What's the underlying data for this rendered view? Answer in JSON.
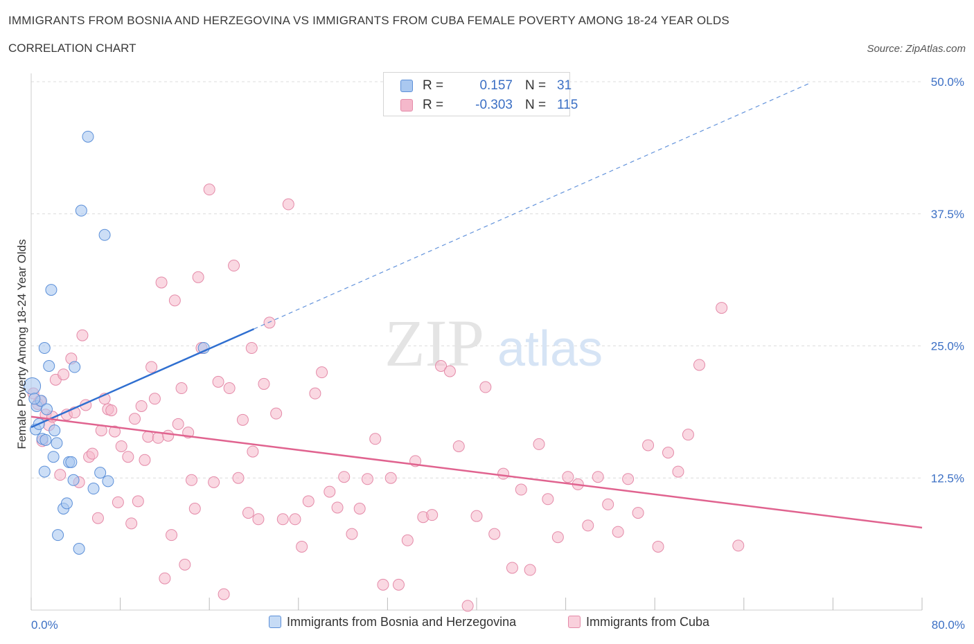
{
  "header": {
    "title": "IMMIGRANTS FROM BOSNIA AND HERZEGOVINA VS IMMIGRANTS FROM CUBA FEMALE POVERTY AMONG 18-24 YEAR OLDS",
    "subtitle": "CORRELATION CHART",
    "source": "Source: ZipAtlas.com"
  },
  "legend": {
    "r_label": "R =",
    "n_label": "N =",
    "rows": [
      {
        "r": "0.157",
        "n": "31"
      },
      {
        "r": "-0.303",
        "n": "115"
      }
    ]
  },
  "colors": {
    "blue_fill": "#aac8f0",
    "blue_stroke": "#5b8fd8",
    "blue_line": "#2f6fd0",
    "pink_fill": "#f5b8cb",
    "pink_stroke": "#e48aa8",
    "pink_line": "#e0638f",
    "axis_text": "#3b6fc4",
    "grid": "#dcdcdc"
  },
  "watermark": {
    "zip": "ZIP",
    "atlas": "atlas"
  },
  "chart_data": {
    "type": "scatter",
    "title": "IMMIGRANTS FROM BOSNIA AND HERZEGOVINA VS IMMIGRANTS FROM CUBA FEMALE POVERTY AMONG 18-24 YEAR OLDS",
    "xlabel": "",
    "ylabel": "Female Poverty Among 18-24 Year Olds",
    "xlim": [
      0,
      80
    ],
    "ylim": [
      0,
      50
    ],
    "x_tick_labels": [
      "0.0%",
      "80.0%"
    ],
    "y_ticks": [
      12.5,
      25.0,
      37.5,
      50.0
    ],
    "y_tick_labels": [
      "12.5%",
      "25.0%",
      "37.5%",
      "50.0%"
    ],
    "grid": true,
    "series": [
      {
        "name": "Immigrants from Bosnia and Herzegovina",
        "color": "blue",
        "points": [
          [
            0.1,
            21.2
          ],
          [
            0.5,
            19.3
          ],
          [
            0.4,
            17.1
          ],
          [
            0.7,
            17.6
          ],
          [
            0.9,
            19.8
          ],
          [
            1.0,
            16.2
          ],
          [
            1.3,
            16.1
          ],
          [
            1.2,
            13.1
          ],
          [
            1.4,
            19.0
          ],
          [
            1.6,
            23.1
          ],
          [
            1.8,
            30.3
          ],
          [
            2.0,
            14.5
          ],
          [
            2.1,
            17.0
          ],
          [
            2.3,
            15.8
          ],
          [
            2.4,
            7.1
          ],
          [
            2.9,
            9.6
          ],
          [
            3.2,
            10.1
          ],
          [
            3.4,
            14.0
          ],
          [
            3.6,
            14.0
          ],
          [
            3.8,
            12.3
          ],
          [
            3.9,
            23.0
          ],
          [
            4.3,
            5.8
          ],
          [
            4.5,
            37.8
          ],
          [
            5.1,
            44.8
          ],
          [
            5.6,
            11.5
          ],
          [
            6.2,
            13.0
          ],
          [
            6.6,
            35.5
          ],
          [
            6.9,
            12.2
          ],
          [
            1.2,
            24.8
          ],
          [
            15.5,
            24.8
          ],
          [
            0.3,
            20.0
          ]
        ],
        "trend": {
          "x": [
            0.0,
            20.0
          ],
          "y": [
            17.3,
            26.6
          ],
          "dashed_to": [
            70.0,
            49.9
          ]
        }
      },
      {
        "name": "Immigrants from Cuba",
        "color": "pink",
        "points": [
          [
            0.2,
            20.5
          ],
          [
            0.6,
            19.5
          ],
          [
            0.8,
            19.8
          ],
          [
            1.0,
            16.0
          ],
          [
            1.3,
            18.5
          ],
          [
            1.6,
            17.5
          ],
          [
            1.9,
            18.3
          ],
          [
            2.2,
            21.8
          ],
          [
            2.6,
            12.8
          ],
          [
            2.9,
            22.3
          ],
          [
            3.2,
            18.5
          ],
          [
            3.6,
            23.8
          ],
          [
            3.9,
            18.7
          ],
          [
            4.3,
            12.1
          ],
          [
            4.6,
            26.0
          ],
          [
            4.9,
            19.4
          ],
          [
            5.2,
            14.5
          ],
          [
            5.5,
            14.8
          ],
          [
            6.0,
            8.7
          ],
          [
            6.3,
            17.0
          ],
          [
            6.6,
            20.0
          ],
          [
            6.9,
            19.0
          ],
          [
            7.2,
            18.9
          ],
          [
            7.5,
            16.9
          ],
          [
            7.8,
            10.2
          ],
          [
            8.1,
            15.5
          ],
          [
            8.7,
            14.5
          ],
          [
            9.0,
            8.2
          ],
          [
            9.3,
            18.1
          ],
          [
            9.6,
            10.3
          ],
          [
            9.9,
            19.3
          ],
          [
            10.2,
            14.2
          ],
          [
            10.5,
            16.4
          ],
          [
            10.8,
            23.0
          ],
          [
            11.1,
            20.0
          ],
          [
            11.4,
            16.3
          ],
          [
            11.7,
            31.0
          ],
          [
            12.0,
            3.0
          ],
          [
            12.3,
            16.5
          ],
          [
            12.6,
            7.1
          ],
          [
            12.9,
            29.3
          ],
          [
            13.2,
            17.6
          ],
          [
            13.5,
            21.0
          ],
          [
            13.8,
            4.3
          ],
          [
            14.1,
            16.8
          ],
          [
            14.4,
            12.3
          ],
          [
            14.7,
            9.6
          ],
          [
            15.0,
            31.5
          ],
          [
            15.3,
            24.8
          ],
          [
            16.0,
            39.8
          ],
          [
            16.4,
            12.1
          ],
          [
            16.8,
            21.6
          ],
          [
            17.3,
            1.5
          ],
          [
            17.8,
            21.0
          ],
          [
            18.2,
            32.6
          ],
          [
            18.6,
            12.5
          ],
          [
            19.0,
            18.0
          ],
          [
            19.5,
            9.2
          ],
          [
            19.9,
            15.0
          ],
          [
            20.4,
            8.6
          ],
          [
            20.9,
            21.4
          ],
          [
            21.4,
            27.2
          ],
          [
            22.0,
            18.6
          ],
          [
            22.6,
            8.6
          ],
          [
            23.1,
            38.4
          ],
          [
            23.7,
            8.6
          ],
          [
            24.3,
            6.0
          ],
          [
            24.9,
            10.3
          ],
          [
            25.5,
            20.5
          ],
          [
            26.1,
            22.5
          ],
          [
            26.8,
            11.2
          ],
          [
            27.5,
            9.7
          ],
          [
            28.1,
            12.6
          ],
          [
            28.8,
            7.2
          ],
          [
            29.5,
            9.6
          ],
          [
            30.2,
            12.4
          ],
          [
            30.9,
            16.2
          ],
          [
            31.6,
            2.4
          ],
          [
            32.3,
            12.5
          ],
          [
            33.0,
            2.4
          ],
          [
            33.8,
            6.6
          ],
          [
            34.5,
            14.1
          ],
          [
            35.2,
            8.8
          ],
          [
            36.0,
            9.0
          ],
          [
            36.8,
            23.1
          ],
          [
            37.6,
            22.6
          ],
          [
            38.4,
            15.5
          ],
          [
            39.2,
            0.4
          ],
          [
            40.0,
            8.9
          ],
          [
            40.8,
            21.1
          ],
          [
            41.6,
            7.2
          ],
          [
            42.4,
            12.9
          ],
          [
            43.2,
            4.0
          ],
          [
            44.0,
            11.4
          ],
          [
            44.8,
            3.8
          ],
          [
            45.6,
            15.7
          ],
          [
            46.4,
            10.5
          ],
          [
            47.3,
            6.9
          ],
          [
            48.2,
            12.6
          ],
          [
            49.1,
            11.9
          ],
          [
            50.0,
            8.0
          ],
          [
            50.9,
            12.6
          ],
          [
            51.8,
            10.0
          ],
          [
            52.7,
            7.4
          ],
          [
            53.6,
            12.4
          ],
          [
            54.5,
            9.2
          ],
          [
            55.4,
            15.6
          ],
          [
            56.3,
            6.0
          ],
          [
            57.2,
            14.9
          ],
          [
            58.1,
            13.1
          ],
          [
            59.0,
            16.6
          ],
          [
            60.0,
            23.2
          ],
          [
            62.0,
            28.6
          ],
          [
            63.5,
            6.1
          ],
          [
            19.8,
            24.8
          ]
        ],
        "trend": {
          "x": [
            0.0,
            80.0
          ],
          "y": [
            18.3,
            7.8
          ]
        }
      }
    ]
  }
}
